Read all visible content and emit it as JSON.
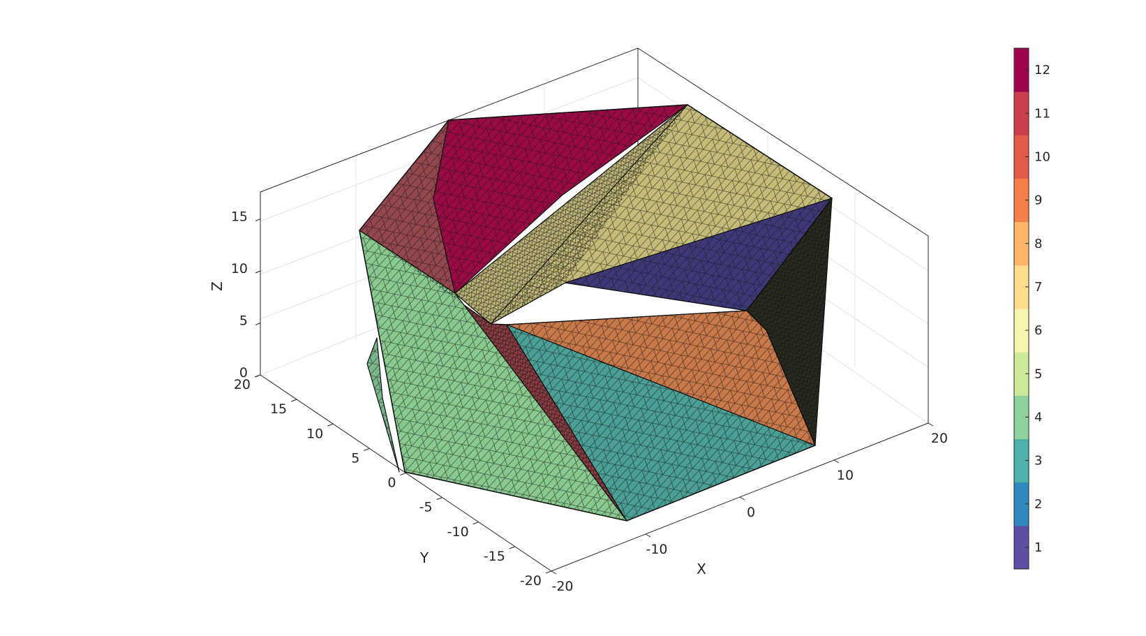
{
  "chart_data": {
    "type": "surface3d",
    "title": "",
    "xlabel": "X",
    "ylabel": "Y",
    "zlabel": "Z",
    "xlim": [
      -20,
      20
    ],
    "ylim": [
      -20,
      20
    ],
    "zlim": [
      0,
      18
    ],
    "x_ticks": [
      "-20",
      "-10",
      "0",
      "10",
      "20"
    ],
    "y_ticks": [
      "-20",
      "-15",
      "-10",
      "-5",
      "0",
      "5",
      "10",
      "15",
      "20"
    ],
    "z_ticks": [
      "0",
      "5",
      "10",
      "15"
    ],
    "grid": true,
    "colorbar": {
      "ticks": [
        "1",
        "2",
        "3",
        "4",
        "5",
        "6",
        "7",
        "8",
        "9",
        "10",
        "11",
        "12"
      ],
      "colors": [
        "#5e4fa2",
        "#3288bd",
        "#4fb0a9",
        "#8fd29f",
        "#cfe99a",
        "#f5f5ad",
        "#fddd8d",
        "#fdb567",
        "#f57f4d",
        "#e35b48",
        "#cc3e4e",
        "#a0054b"
      ]
    },
    "faces": [
      {
        "label": 1,
        "color": "#3d3978"
      },
      {
        "label": 3,
        "color": "#4aa096"
      },
      {
        "label": 4,
        "color": "#88c98f"
      },
      {
        "label": 6,
        "color": "#c5bb78"
      },
      {
        "label": 9,
        "color": "#c9784a"
      },
      {
        "label": 11,
        "color": "#95474e"
      },
      {
        "label": 12,
        "color": "#9b0a45"
      }
    ]
  }
}
